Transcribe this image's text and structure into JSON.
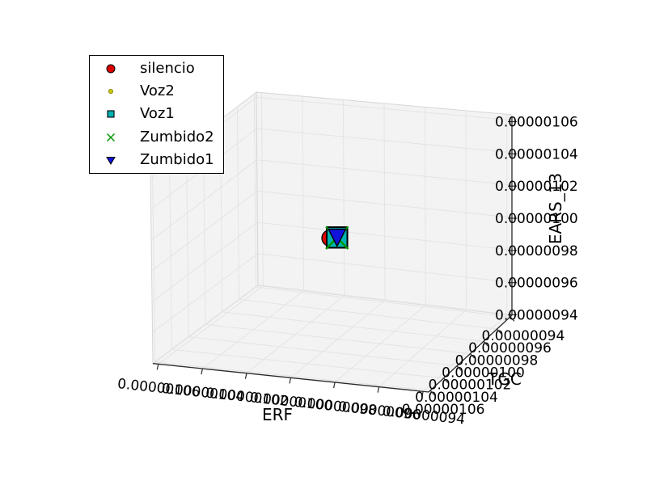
{
  "chart_data": {
    "type": "scatter",
    "projection": "3d",
    "title": "",
    "xlabel": "ERF",
    "ylabel": "TGC",
    "zlabel": "EARS_13",
    "x_tick_labels": [
      "0.00000106",
      "0.00000104",
      "0.00000102",
      "0.00000100",
      "0.00000098",
      "0.00000096",
      "0.00000094"
    ],
    "y_tick_labels": [
      "0.00000094",
      "0.00000096",
      "0.00000098",
      "0.00000100",
      "0.00000102",
      "0.00000104",
      "0.00000106"
    ],
    "z_tick_labels": [
      "0.00000106",
      "0.00000104",
      "0.00000102",
      "0.00000100",
      "0.00000098",
      "0.00000096",
      "0.00000094"
    ],
    "x_range": [
      9.4e-07,
      1.06e-06
    ],
    "y_range": [
      9.4e-07,
      1.06e-06
    ],
    "z_range": [
      9.4e-07,
      1.06e-06
    ],
    "grid": true,
    "legend_position": "upper left",
    "series": [
      {
        "name": "silencio",
        "marker": "circle",
        "color": "#dd0000",
        "edge_color": "#000000",
        "points": [
          [
            1e-06,
            1e-06,
            1e-06
          ]
        ]
      },
      {
        "name": "Voz2",
        "marker": "dot",
        "color": "#c8c800",
        "edge_color": "#000000",
        "points": [
          [
            1e-06,
            1e-06,
            1e-06
          ]
        ]
      },
      {
        "name": "Voz1",
        "marker": "square",
        "color": "#00b2b2",
        "edge_color": "#000000",
        "points": [
          [
            1e-06,
            1e-06,
            1e-06
          ]
        ]
      },
      {
        "name": "Zumbido2",
        "marker": "x",
        "color": "#009900",
        "edge_color": "#009900",
        "points": [
          [
            1e-06,
            1e-06,
            1e-06
          ]
        ]
      },
      {
        "name": "Zumbido1",
        "marker": "triangle-down",
        "color": "#1212dd",
        "edge_color": "#000000",
        "points": [
          [
            1e-06,
            1e-06,
            1e-06
          ]
        ]
      }
    ],
    "pane_color": "#f3f3f3",
    "grid_color": "#e4e4e4",
    "spine_color": "#2b2b2b",
    "text_color": "#000000"
  }
}
